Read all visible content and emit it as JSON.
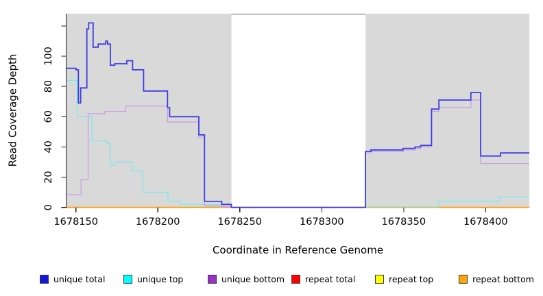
{
  "chart_data": {
    "type": "step-line",
    "title": "",
    "xlabel": "Coordinate in Reference Genome",
    "ylabel": "Read Coverage Depth",
    "xlim": [
      1678144,
      1678427
    ],
    "ylim": [
      0,
      128
    ],
    "x_axis": {
      "ticks": [
        1678150,
        1678200,
        1678250,
        1678300,
        1678350,
        1678400
      ],
      "tick_labels": [
        "1678150",
        "1678200",
        "1678250",
        "1678300",
        "1678350",
        "1678400"
      ]
    },
    "y_axis": {
      "ticks": [
        0,
        20,
        40,
        60,
        80,
        100,
        120
      ],
      "tick_labels": [
        "0",
        "20",
        "40",
        "60",
        "80",
        "100",
        ""
      ]
    },
    "region_color": "#d9d9d9",
    "shaded_regions": [
      {
        "x1": 1678144.3,
        "x2": 1678244.9
      },
      {
        "x1": 1678326.7,
        "x2": 1678426.7
      }
    ],
    "gap_top_border": {
      "x1": 1678244.9,
      "x2": 1678326.7,
      "color": "#8a8a8a"
    },
    "overlap_segments": [
      {
        "x1": 1678326.7,
        "x2": 1678371.0,
        "y": 0,
        "color": "#98d098",
        "note": "unique top over repeat bottom at zero"
      },
      {
        "x1": 1678239.0,
        "x2": 1678244.9,
        "y": 0.4,
        "color": "#e58f96",
        "note": "repeat total / unique bottom near zero"
      }
    ],
    "series": [
      {
        "name": "unique total",
        "color": "#3c3ce4",
        "z": 9,
        "width": 1.8,
        "paths": [
          {
            "end": 1678426.7,
            "points": [
              [
                1678144.3,
                92
              ],
              [
                1678150.1,
                91
              ],
              [
                1678151.5,
                69
              ],
              [
                1678152.9,
                79
              ],
              [
                1678156.7,
                118
              ],
              [
                1678157.8,
                122
              ],
              [
                1678160.5,
                106
              ],
              [
                1678163.6,
                108
              ],
              [
                1678168.2,
                110
              ],
              [
                1678169.3,
                108
              ],
              [
                1678171.0,
                94
              ],
              [
                1678173.7,
                95
              ],
              [
                1678181.1,
                97
              ],
              [
                1678184.6,
                91
              ],
              [
                1678191.3,
                77
              ],
              [
                1678205.9,
                66
              ],
              [
                1678207.2,
                60
              ],
              [
                1678225.0,
                48
              ],
              [
                1678228.5,
                4
              ],
              [
                1678239.0,
                2
              ],
              [
                1678244.9,
                0
              ],
              [
                1678326.7,
                37
              ],
              [
                1678330.0,
                38
              ],
              [
                1678349.6,
                39
              ],
              [
                1678356.9,
                40
              ],
              [
                1678360.4,
                41
              ],
              [
                1678367.0,
                65
              ],
              [
                1678371.5,
                71
              ],
              [
                1678391.0,
                76
              ],
              [
                1678397.0,
                34
              ],
              [
                1678409.1,
                36
              ]
            ]
          }
        ]
      },
      {
        "name": "unique top",
        "color": "#7de9ef",
        "z": 6,
        "width": 1.4,
        "paths": [
          {
            "end": 1678239.0,
            "points": [
              [
                1678144.3,
                84
              ],
              [
                1678150.8,
                60
              ],
              [
                1678159.8,
                44
              ],
              [
                1678169.0,
                42
              ],
              [
                1678170.9,
                28
              ],
              [
                1678173.7,
                30
              ],
              [
                1678184.3,
                24
              ],
              [
                1678190.8,
                10
              ],
              [
                1678206.2,
                4
              ],
              [
                1678213.8,
                2
              ],
              [
                1678239.0,
                0
              ]
            ]
          },
          {
            "end": 1678426.7,
            "points": [
              [
                1678371.0,
                0
              ],
              [
                1678371.0,
                4
              ],
              [
                1678408.2,
                7
              ]
            ]
          }
        ]
      },
      {
        "name": "unique bottom",
        "color": "#c9a2e6",
        "z": 7,
        "width": 1.4,
        "paths": [
          {
            "end": 1678426.7,
            "points": [
              [
                1678144.3,
                8.5
              ],
              [
                1678153.2,
                18.5
              ],
              [
                1678157.5,
                62
              ],
              [
                1678167.6,
                63.5
              ],
              [
                1678180.4,
                67
              ],
              [
                1678205.9,
                56.5
              ],
              [
                1678225.0,
                46.5
              ],
              [
                1678228.5,
                1
              ],
              [
                1678239.0,
                0.5
              ],
              [
                1678244.9,
                0
              ],
              [
                1678326.7,
                36
              ],
              [
                1678330.0,
                37
              ],
              [
                1678349.6,
                38
              ],
              [
                1678356.9,
                39
              ],
              [
                1678360.4,
                40
              ],
              [
                1678367.0,
                63.5
              ],
              [
                1678371.5,
                66
              ],
              [
                1678391.0,
                71
              ],
              [
                1678397.0,
                29
              ]
            ]
          }
        ]
      },
      {
        "name": "repeat total",
        "color": "#ff0000",
        "z": 3,
        "width": 1.1,
        "paths": [
          {
            "end": 1678426.7,
            "points": [
              [
                1678144.3,
                0
              ]
            ]
          }
        ]
      },
      {
        "name": "repeat top",
        "color": "#ffff00",
        "z": 2,
        "width": 1.1,
        "paths": [
          {
            "end": 1678426.7,
            "points": [
              [
                1678144.3,
                0
              ]
            ]
          }
        ]
      },
      {
        "name": "repeat bottom",
        "color": "#ff9d0a",
        "z": 4,
        "width": 1.9,
        "paths": [
          {
            "end": 1678426.7,
            "points": [
              [
                1678144.3,
                0
              ]
            ]
          }
        ]
      }
    ],
    "legend": [
      {
        "label": "unique total",
        "color": "#1414dd"
      },
      {
        "label": "unique top",
        "color": "#00ffff"
      },
      {
        "label": "unique bottom",
        "color": "#9932cc"
      },
      {
        "label": "repeat total",
        "color": "#ff0000"
      },
      {
        "label": "repeat top",
        "color": "#ffff00"
      },
      {
        "label": "repeat bottom",
        "color": "#ffa500"
      }
    ]
  }
}
